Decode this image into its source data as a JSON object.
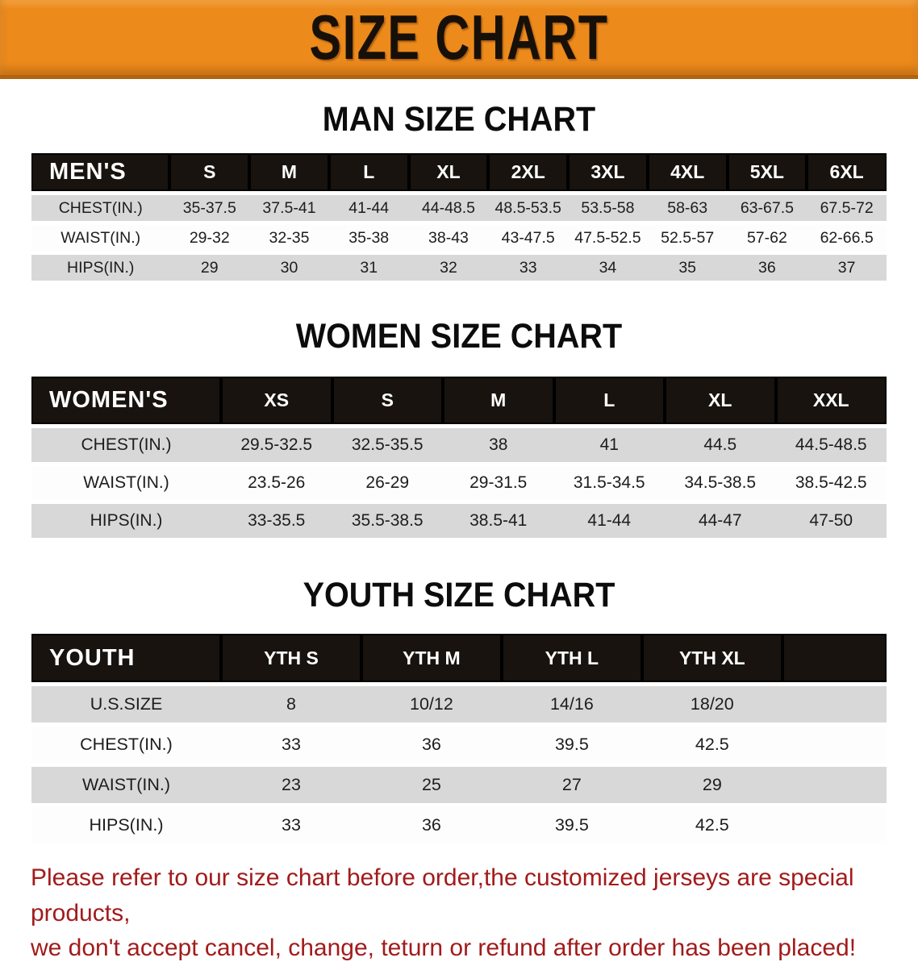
{
  "banner": {
    "title": "SIZE CHART",
    "background_color": "#ec8a1c",
    "text_color": "#171009"
  },
  "sections": [
    {
      "heading": "MAN SIZE CHART",
      "table": {
        "corner_label": "MEN'S",
        "columns": [
          "S",
          "M",
          "L",
          "XL",
          "2XL",
          "3XL",
          "4XL",
          "5XL",
          "6XL"
        ],
        "rows": [
          {
            "label": "CHEST(IN.)",
            "values": [
              "35-37.5",
              "37.5-41",
              "41-44",
              "44-48.5",
              "48.5-53.5",
              "53.5-58",
              "58-63",
              "63-67.5",
              "67.5-72"
            ]
          },
          {
            "label": "WAIST(IN.)",
            "values": [
              "29-32",
              "32-35",
              "35-38",
              "38-43",
              "43-47.5",
              "47.5-52.5",
              "52.5-57",
              "57-62",
              "62-66.5"
            ]
          },
          {
            "label": "HIPS(IN.)",
            "values": [
              "29",
              "30",
              "31",
              "32",
              "33",
              "34",
              "35",
              "36",
              "37"
            ]
          }
        ]
      }
    },
    {
      "heading": "WOMEN SIZE CHART",
      "table": {
        "corner_label": "WOMEN'S",
        "columns": [
          "XS",
          "S",
          "M",
          "L",
          "XL",
          "XXL"
        ],
        "rows": [
          {
            "label": "CHEST(IN.)",
            "values": [
              "29.5-32.5",
              "32.5-35.5",
              "38",
              "41",
              "44.5",
              "44.5-48.5"
            ]
          },
          {
            "label": "WAIST(IN.)",
            "values": [
              "23.5-26",
              "26-29",
              "29-31.5",
              "31.5-34.5",
              "34.5-38.5",
              "38.5-42.5"
            ]
          },
          {
            "label": "HIPS(IN.)",
            "values": [
              "33-35.5",
              "35.5-38.5",
              "38.5-41",
              "41-44",
              "44-47",
              "47-50"
            ]
          }
        ]
      }
    },
    {
      "heading": "YOUTH SIZE CHART",
      "table": {
        "corner_label": "YOUTH",
        "spacer": true,
        "columns": [
          "YTH S",
          "YTH M",
          "YTH L",
          "YTH XL"
        ],
        "rows": [
          {
            "label": "U.S.SIZE",
            "values": [
              "8",
              "10/12",
              "14/16",
              "18/20"
            ]
          },
          {
            "label": "CHEST(IN.)",
            "values": [
              "33",
              "36",
              "39.5",
              "42.5"
            ]
          },
          {
            "label": "WAIST(IN.)",
            "values": [
              "23",
              "25",
              "27",
              "29"
            ]
          },
          {
            "label": "HIPS(IN.)",
            "values": [
              "33",
              "36",
              "39.5",
              "42.5"
            ]
          }
        ]
      }
    }
  ],
  "disclaimer": {
    "line1": "Please refer to our size chart before order,the customized jerseys are special products,",
    "line2": "we don't accept cancel, change, teturn or refund after order has been placed!",
    "color": "#a21b1b"
  }
}
